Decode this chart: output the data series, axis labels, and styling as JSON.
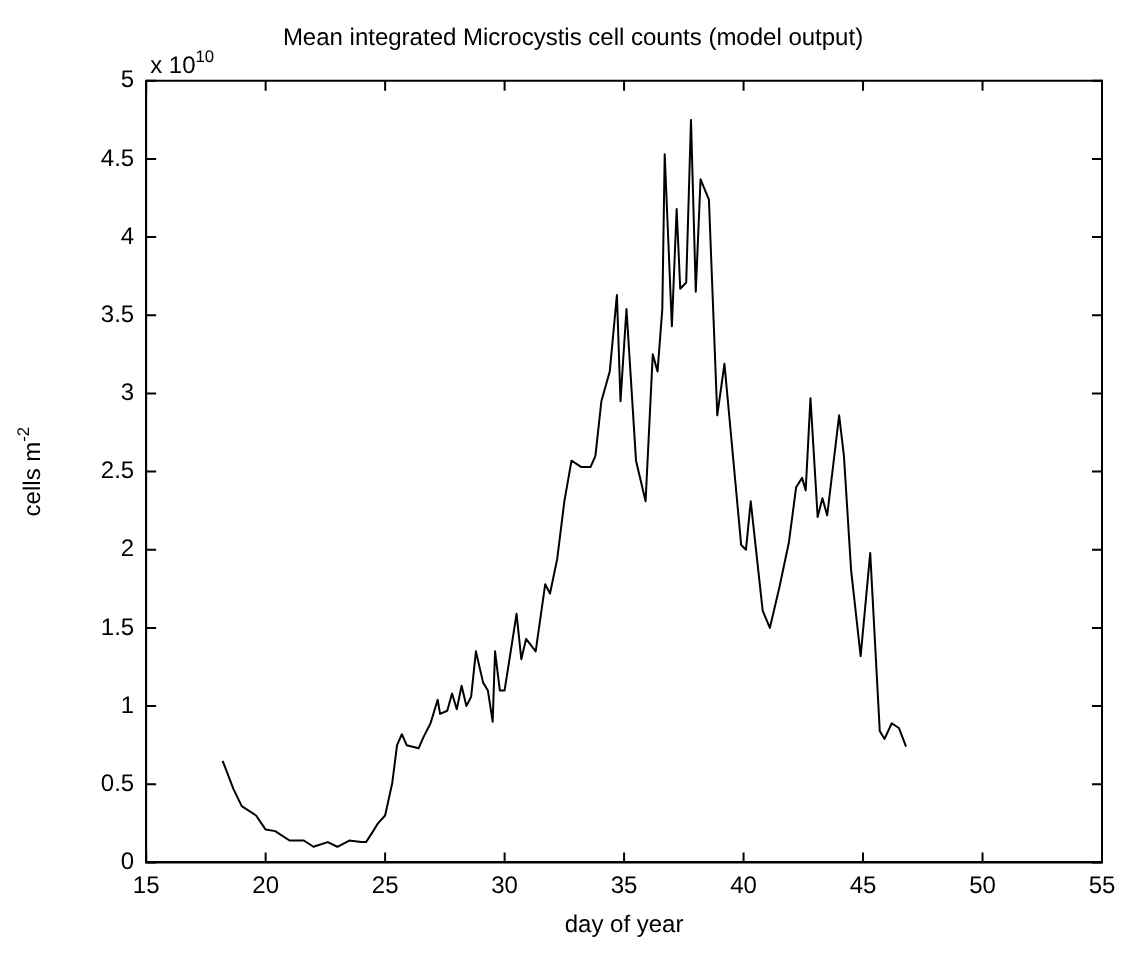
{
  "chart_data": {
    "type": "line",
    "title": "Mean integrated Microcystis cell counts (model output)",
    "xlabel": "day of year",
    "ylabel": "cells m$^{-2}$",
    "annotations": [
      "x 10$^{10}$"
    ],
    "x": [
      18.2,
      18.65,
      19.0,
      19.6,
      20.0,
      20.4,
      21.0,
      21.6,
      22.0,
      22.6,
      23.0,
      23.5,
      24.0,
      24.2,
      24.5,
      24.7,
      25.0,
      25.3,
      25.5,
      25.7,
      25.9,
      26.4,
      26.6,
      26.9,
      27.2,
      27.3,
      27.6,
      27.8,
      28.0,
      28.2,
      28.4,
      28.6,
      28.8,
      29.1,
      29.3,
      29.5,
      29.6,
      29.8,
      30.0,
      30.5,
      30.7,
      30.9,
      31.3,
      31.7,
      31.9,
      32.2,
      32.5,
      32.8,
      33.2,
      33.6,
      33.8,
      34.05,
      34.4,
      34.7,
      34.85,
      35.1,
      35.5,
      35.9,
      36.2,
      36.4,
      36.6,
      36.7,
      37.0,
      37.2,
      37.35,
      37.6,
      37.8,
      38.0,
      38.2,
      38.55,
      38.9,
      39.2,
      39.9,
      40.1,
      40.3,
      40.8,
      41.1,
      41.5,
      41.9,
      42.2,
      42.45,
      42.6,
      42.8,
      43.1,
      43.3,
      43.5,
      44.0,
      44.2,
      44.5,
      44.9,
      45.3,
      45.7,
      45.9,
      46.2,
      46.5,
      46.8
    ],
    "series": [
      {
        "color": "#000000",
        "values": [
          0.65,
          0.47,
          0.36,
          0.3,
          0.21,
          0.2,
          0.14,
          0.14,
          0.1,
          0.13,
          0.1,
          0.14,
          0.13,
          0.13,
          0.2,
          0.25,
          0.3,
          0.51,
          0.75,
          0.82,
          0.75,
          0.73,
          0.8,
          0.89,
          1.04,
          0.95,
          0.97,
          1.08,
          0.98,
          1.13,
          1.0,
          1.06,
          1.35,
          1.15,
          1.1,
          0.9,
          1.35,
          1.1,
          1.1,
          1.59,
          1.3,
          1.43,
          1.35,
          1.78,
          1.72,
          1.94,
          2.31,
          2.57,
          2.53,
          2.53,
          2.6,
          2.95,
          3.14,
          3.63,
          2.95,
          3.54,
          2.57,
          2.31,
          3.25,
          3.14,
          3.54,
          4.53,
          3.43,
          4.18,
          3.67,
          3.71,
          4.75,
          3.65,
          4.37,
          4.24,
          2.86,
          3.19,
          2.03,
          2.0,
          2.31,
          1.61,
          1.5,
          1.76,
          2.05,
          2.4,
          2.46,
          2.38,
          2.97,
          2.21,
          2.33,
          2.22,
          2.86,
          2.6,
          1.87,
          1.32,
          1.98,
          0.84,
          0.79,
          0.89,
          0.86,
          0.74
        ]
      }
    ],
    "xlim": [
      15,
      55
    ],
    "xticks": [
      15,
      20,
      25,
      30,
      35,
      40,
      45,
      50,
      55
    ],
    "ylim": [
      0,
      5
    ],
    "yticks": [
      0,
      0.5,
      1,
      1.5,
      2,
      2.5,
      3,
      3.5,
      4,
      4.5,
      5
    ],
    "grid": false,
    "legend": false,
    "marker": "none",
    "line_style": "solid"
  }
}
